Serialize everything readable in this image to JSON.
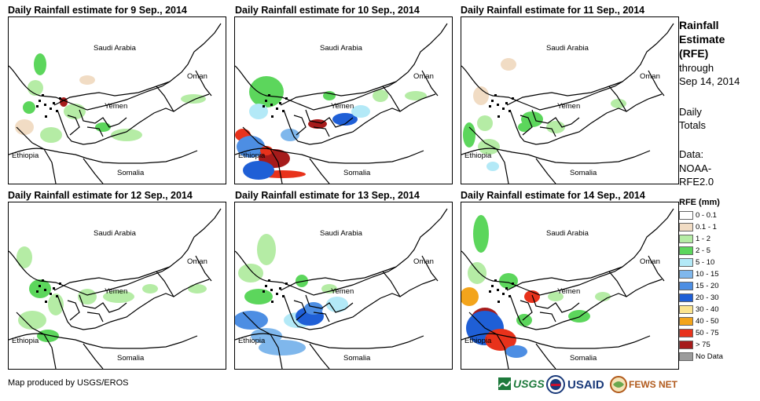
{
  "panels": [
    {
      "title": "Daily Rainfall estimate for 9 Sep., 2014"
    },
    {
      "title": "Daily Rainfall estimate for 10 Sep., 2014"
    },
    {
      "title": "Daily Rainfall estimate for 11 Sep., 2014"
    },
    {
      "title": "Daily Rainfall estimate for 12 Sep., 2014"
    },
    {
      "title": "Daily Rainfall estimate for 13 Sep., 2014"
    },
    {
      "title": "Daily Rainfall estimate for 14 Sep., 2014"
    }
  ],
  "map_labels": {
    "saudi": "Saudi Arabia",
    "oman": "Oman",
    "yemen": "Yemen",
    "ethiopia": "Ethiopia",
    "somalia": "Somalia"
  },
  "legend": {
    "title_lines": [
      "Rainfall",
      "Estimate",
      "(RFE)"
    ],
    "subtitle_lines": [
      "through",
      "Sep 14, 2014"
    ],
    "totals_lines": [
      "Daily",
      "Totals"
    ],
    "data_lines": [
      "Data:",
      "NOAA-",
      "RFE2.0"
    ],
    "heading": "RFE (mm)",
    "classes": [
      {
        "label": "0 - 0.1",
        "color": "#ffffff"
      },
      {
        "label": "0.1 - 1",
        "color": "#f1dcc4"
      },
      {
        "label": "1 - 2",
        "color": "#b5eca5"
      },
      {
        "label": "2 - 5",
        "color": "#5cd65c"
      },
      {
        "label": "5 - 10",
        "color": "#b3e9f7"
      },
      {
        "label": "10 - 15",
        "color": "#7fb7ec"
      },
      {
        "label": "15 - 20",
        "color": "#4d8ee3"
      },
      {
        "label": "20 - 30",
        "color": "#1f5fd6"
      },
      {
        "label": "30 - 40",
        "color": "#fbe48f"
      },
      {
        "label": "40 - 50",
        "color": "#f3a41b"
      },
      {
        "label": "50 - 75",
        "color": "#e8321b"
      },
      {
        "label": "> 75",
        "color": "#a61b1b"
      },
      {
        "label": "No Data",
        "color": "#9c9c9c"
      }
    ]
  },
  "footer": {
    "credit": "Map produced by USGS/EROS"
  },
  "logos": {
    "usgs": "USGS",
    "usaid": "USAID",
    "fewsnet": "FEWS NET"
  }
}
